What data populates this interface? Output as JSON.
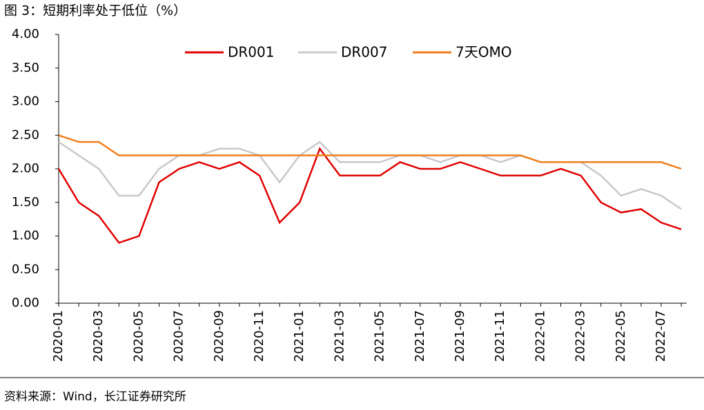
{
  "chart_data": {
    "type": "line",
    "title": "图 3：短期利率处于低位（%）",
    "source": "资料来源：Wind，长江证券研究所",
    "categories": [
      "2020-01",
      null,
      "2020-03",
      null,
      "2020-05",
      null,
      "2020-07",
      null,
      "2020-09",
      null,
      "2020-11",
      null,
      "2021-01",
      null,
      "2021-03",
      null,
      "2021-05",
      null,
      "2021-07",
      null,
      "2021-09",
      null,
      "2021-11",
      null,
      "2022-01",
      null,
      "2022-03",
      null,
      "2022-05",
      null,
      "2022-07",
      null
    ],
    "series": [
      {
        "name": "DR001",
        "color": "#e00000",
        "values": [
          2.0,
          1.5,
          1.3,
          0.9,
          1.0,
          1.8,
          2.0,
          2.1,
          2.0,
          2.1,
          1.9,
          1.2,
          1.5,
          2.3,
          1.9,
          1.9,
          1.9,
          2.1,
          2.0,
          2.0,
          2.1,
          2.0,
          1.9,
          1.9,
          1.9,
          2.0,
          1.9,
          1.5,
          1.35,
          1.4,
          1.2,
          1.1
        ]
      },
      {
        "name": "DR007",
        "color": "#c8c8c8",
        "values": [
          2.4,
          2.2,
          2.0,
          1.6,
          1.6,
          2.0,
          2.2,
          2.2,
          2.3,
          2.3,
          2.2,
          1.8,
          2.2,
          2.4,
          2.1,
          2.1,
          2.1,
          2.2,
          2.2,
          2.1,
          2.2,
          2.2,
          2.1,
          2.2,
          2.1,
          2.1,
          2.1,
          1.9,
          1.6,
          1.7,
          1.6,
          1.4
        ]
      },
      {
        "name": "7天OMO",
        "color": "#f07d1a",
        "values": [
          2.5,
          2.4,
          2.4,
          2.2,
          2.2,
          2.2,
          2.2,
          2.2,
          2.2,
          2.2,
          2.2,
          2.2,
          2.2,
          2.2,
          2.2,
          2.2,
          2.2,
          2.2,
          2.2,
          2.2,
          2.2,
          2.2,
          2.2,
          2.2,
          2.1,
          2.1,
          2.1,
          2.1,
          2.1,
          2.1,
          2.1,
          2.0
        ]
      }
    ],
    "ylim": [
      0,
      4
    ],
    "yticks": [
      {
        "value": 0,
        "label": "0.00"
      },
      {
        "value": 0.5,
        "label": "0.50"
      },
      {
        "value": 1,
        "label": "1.00"
      },
      {
        "value": 1.5,
        "label": "1.50"
      },
      {
        "value": 2,
        "label": "2.00"
      },
      {
        "value": 2.5,
        "label": "2.50"
      },
      {
        "value": 3,
        "label": "3.00"
      },
      {
        "value": 3.5,
        "label": "3.50"
      },
      {
        "value": 4,
        "label": "4.00"
      }
    ],
    "grid": false,
    "legend": "top"
  }
}
